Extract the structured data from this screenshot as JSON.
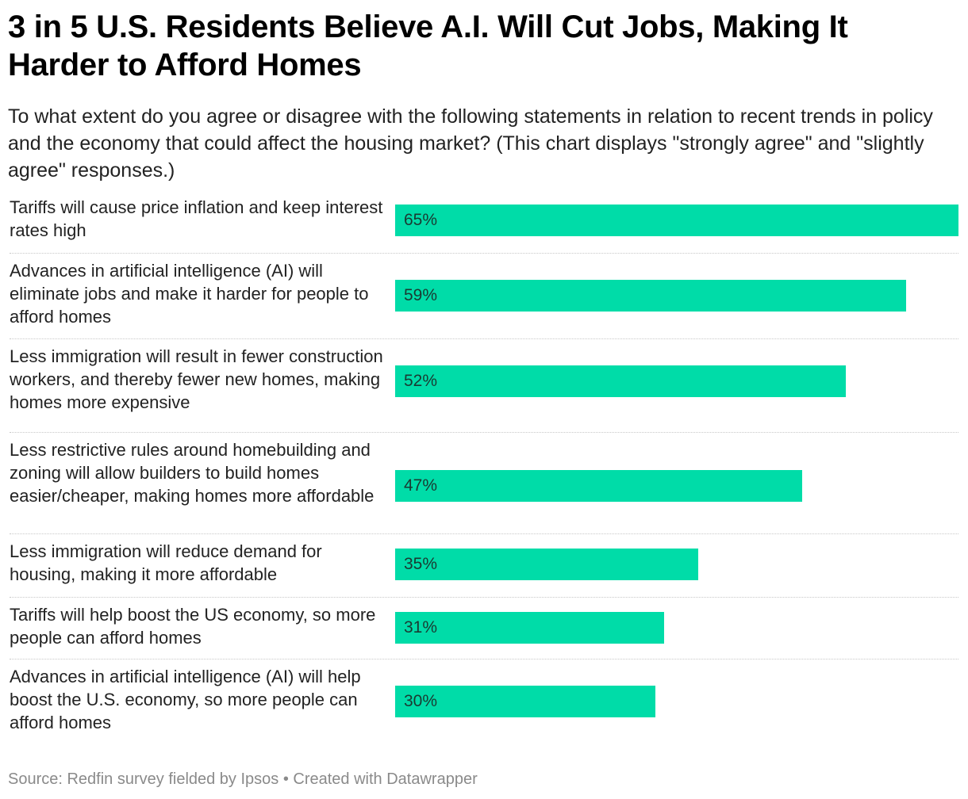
{
  "chart_data": {
    "type": "bar",
    "orientation": "horizontal",
    "title": "3 in 5 U.S. Residents Believe A.I. Will Cut Jobs, Making It Harder to Afford Homes",
    "subtitle": "To what extent do you agree or disagree with the following statements in relation to recent trends in policy and the economy that could affect the housing market? (This chart displays \"strongly agree\" and \"slightly agree\" responses.)",
    "categories": [
      "Tariffs will cause price inflation and keep interest rates high",
      "Advances in artificial intelligence (AI) will eliminate jobs and make it harder for people to afford homes",
      "Less immigration will result in fewer construction workers, and thereby fewer new homes, making homes more expensive",
      "Less restrictive rules around homebuilding and zoning will allow builders to build homes easier/cheaper, making homes more affordable",
      "Less immigration will reduce demand for housing, making it more affordable",
      "Tariffs will help boost the US economy, so more people can afford homes",
      "Advances in artificial intelligence (AI) will help boost the U.S. economy, so more people can afford homes"
    ],
    "values": [
      65,
      59,
      52,
      47,
      35,
      31,
      30
    ],
    "value_labels": [
      "65%",
      "59%",
      "52%",
      "47%",
      "35%",
      "31%",
      "30%"
    ],
    "xlim": [
      0,
      65
    ],
    "bar_color": "#00dca8",
    "grid": false,
    "legend": "none",
    "source": "Source: Redfin survey fielded by Ipsos • Created with Datawrapper"
  }
}
